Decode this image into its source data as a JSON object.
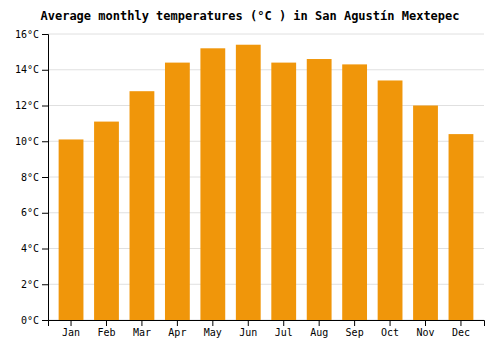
{
  "chart_data": {
    "type": "bar",
    "title": "Average monthly temperatures (°C ) in San Agustín Mextepec",
    "categories": [
      "Jan",
      "Feb",
      "Mar",
      "Apr",
      "May",
      "Jun",
      "Jul",
      "Aug",
      "Sep",
      "Oct",
      "Nov",
      "Dec"
    ],
    "values": [
      10.1,
      11.1,
      12.8,
      14.4,
      15.2,
      15.4,
      14.4,
      14.6,
      14.3,
      13.4,
      12.0,
      10.4
    ],
    "color": "#F0960A",
    "ylim": [
      0,
      16
    ],
    "yticks": [
      {
        "value": 0,
        "label": "0°C"
      },
      {
        "value": 2,
        "label": "2°C"
      },
      {
        "value": 4,
        "label": "4°C"
      },
      {
        "value": 6,
        "label": "6°C"
      },
      {
        "value": 8,
        "label": "8°C"
      },
      {
        "value": 10,
        "label": "10°C"
      },
      {
        "value": 12,
        "label": "12°C"
      },
      {
        "value": 14,
        "label": "14°C"
      },
      {
        "value": 16,
        "label": "16°C"
      }
    ],
    "grid": true
  }
}
